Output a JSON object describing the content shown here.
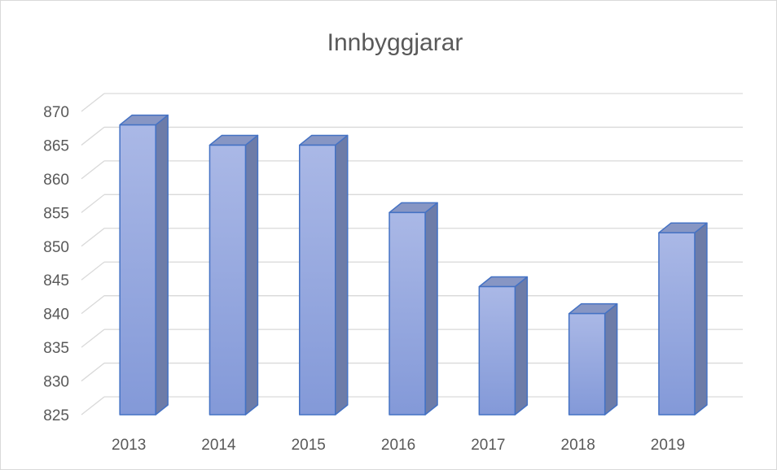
{
  "chart_data": {
    "type": "bar3d",
    "title": "Innbyggjarar",
    "categories": [
      "2013",
      "2014",
      "2015",
      "2016",
      "2017",
      "2018",
      "2019"
    ],
    "values": [
      868,
      865,
      865,
      855,
      844,
      840,
      852
    ],
    "color": "#8fa2dc",
    "ylim": [
      825,
      870
    ],
    "yticks": [
      825,
      830,
      835,
      840,
      845,
      850,
      855,
      860,
      865,
      870
    ],
    "grid": true
  }
}
